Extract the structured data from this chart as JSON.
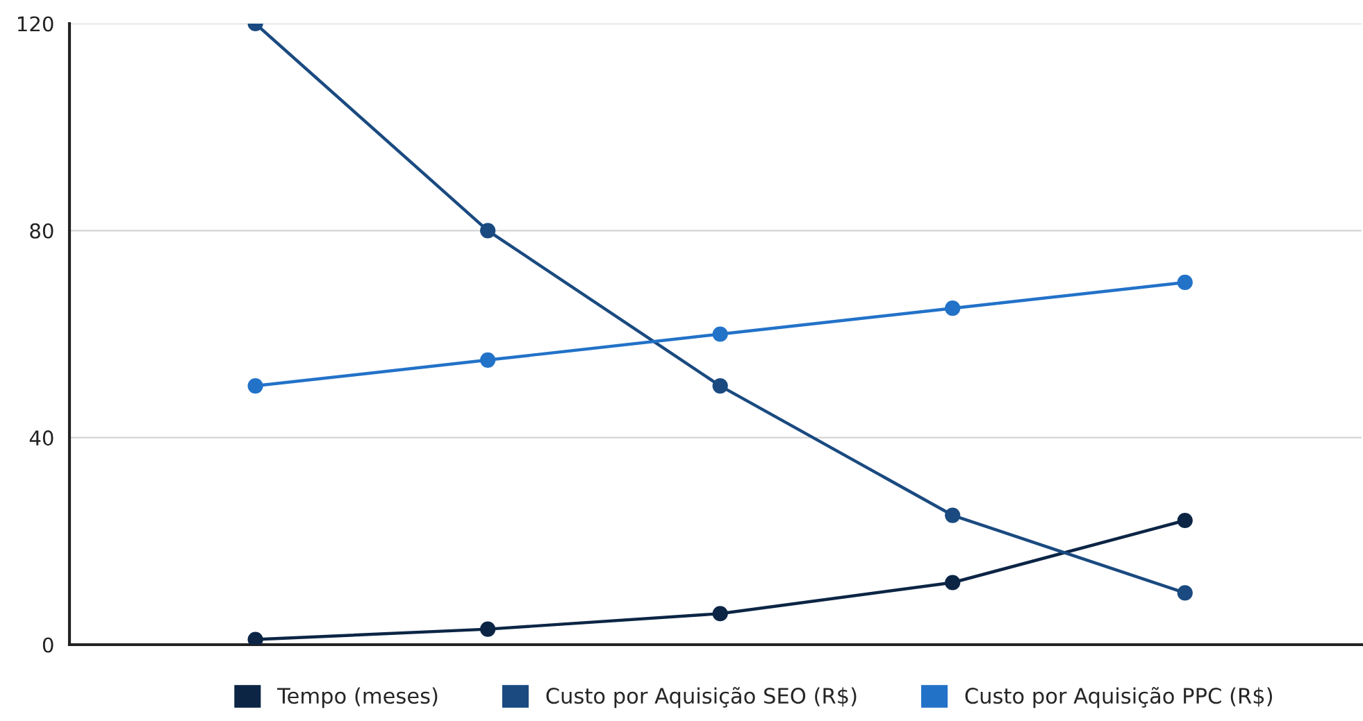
{
  "chart_data": {
    "type": "line",
    "categories": [
      null,
      null,
      null,
      null,
      null
    ],
    "series": [
      {
        "name": "Tempo (meses)",
        "color": "#0c2545",
        "values": [
          1,
          3,
          6,
          12,
          24
        ]
      },
      {
        "name": "Custo por Aquisição SEO (R$)",
        "color": "#1a4a80",
        "values": [
          120,
          80,
          50,
          25,
          10
        ]
      },
      {
        "name": "Custo por Aquisição PPC (R$)",
        "color": "#2272c8",
        "values": [
          50,
          55,
          60,
          65,
          70
        ]
      }
    ],
    "ylim": [
      0,
      120
    ],
    "yticks": [
      0,
      40,
      80,
      120
    ],
    "grid": "y",
    "legend": "bottom",
    "marker": "circle",
    "line_style": "solid"
  }
}
